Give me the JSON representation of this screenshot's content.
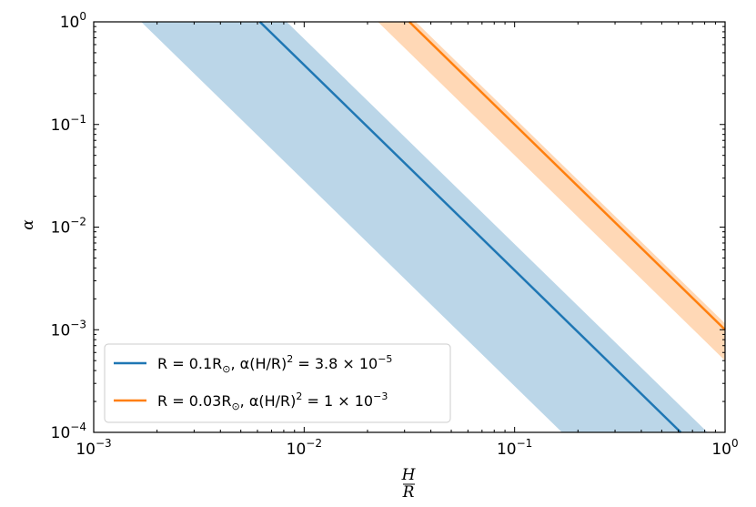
{
  "chart_data": {
    "type": "line",
    "xscale": "log",
    "yscale": "log",
    "xlim": [
      0.001,
      1
    ],
    "ylim": [
      0.0001,
      1
    ],
    "xlabel_num": "H",
    "xlabel_den": "R",
    "ylabel": "α",
    "x_ticks": [
      {
        "value": 0.001,
        "base": "10",
        "exp": "−3"
      },
      {
        "value": 0.01,
        "base": "10",
        "exp": "−2"
      },
      {
        "value": 0.1,
        "base": "10",
        "exp": "−1"
      },
      {
        "value": 1,
        "base": "10",
        "exp": "0"
      }
    ],
    "y_ticks": [
      {
        "value": 0.0001,
        "base": "10",
        "exp": "−4"
      },
      {
        "value": 0.001,
        "base": "10",
        "exp": "−3"
      },
      {
        "value": 0.01,
        "base": "10",
        "exp": "−2"
      },
      {
        "value": 0.1,
        "base": "10",
        "exp": "−1"
      },
      {
        "value": 1,
        "base": "10",
        "exp": "0"
      }
    ],
    "legend_position": "lower-left",
    "series": [
      {
        "legend_parts": [
          "R = 0.1R",
          "⊙",
          ", α(H/R)",
          "2",
          " = 3.8 × 10",
          "−5"
        ],
        "color": "#1f77b4",
        "band_color": "#1f77b4",
        "line": {
          "x": [
            0.00616,
            0.616
          ],
          "y": [
            1,
            0.0001
          ]
        },
        "band_upper": {
          "x": [
            0.00826,
            0.826
          ],
          "y": [
            1,
            0.0001
          ]
        },
        "band_lower": {
          "x": [
            0.00168,
            0.168
          ],
          "y": [
            1,
            0.0001
          ]
        }
      },
      {
        "legend_parts": [
          "R = 0.03R",
          "⊙",
          ", α(H/R)",
          "2",
          " = 1 × 10",
          "−3"
        ],
        "color": "#ff7f0e",
        "band_color": "#ff7f0e",
        "line": {
          "x": [
            0.0316,
            1
          ],
          "y": [
            1,
            0.001
          ]
        },
        "band_upper": {
          "x": [
            0.0339,
            1
          ],
          "y": [
            1,
            0.00115
          ]
        },
        "band_lower": {
          "x": [
            0.0224,
            1
          ],
          "y": [
            1,
            0.0005
          ]
        }
      }
    ]
  }
}
